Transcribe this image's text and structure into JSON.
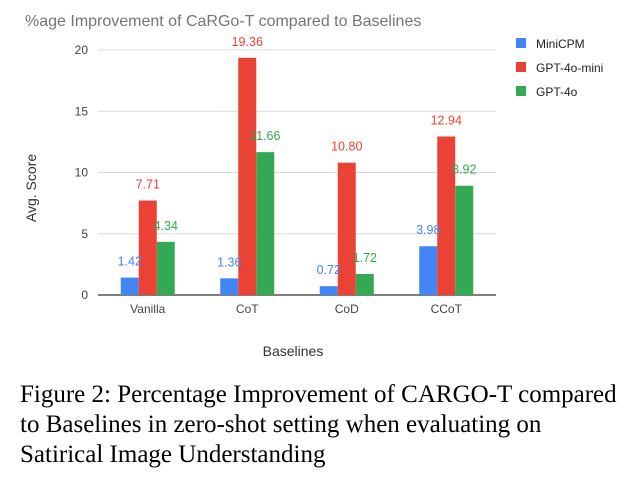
{
  "chart_data": {
    "type": "bar",
    "title": "%age Improvement of CaRGo-T compared to Baselines",
    "xlabel": "Baselines",
    "ylabel": "Avg. Score",
    "categories": [
      "Vanilla",
      "CoT",
      "CoD",
      "CCoT"
    ],
    "yticks": [
      0,
      5,
      10,
      15,
      20
    ],
    "ylim": [
      0,
      20
    ],
    "grid": true,
    "legend_position": "right",
    "series": [
      {
        "name": "MiniCPM",
        "color": "#4285f4",
        "values": [
          1.42,
          1.36,
          0.72,
          3.98
        ],
        "labels": [
          "1.42",
          "1.36",
          "0.72",
          "3.98"
        ]
      },
      {
        "name": "GPT-4o-mini",
        "color": "#ea4335",
        "values": [
          7.71,
          19.36,
          10.8,
          12.94
        ],
        "labels": [
          "7.71",
          "19.36",
          "10.80",
          "12.94"
        ]
      },
      {
        "name": "GPT-4o",
        "color": "#34a853",
        "values": [
          4.34,
          11.66,
          1.72,
          8.92
        ],
        "labels": [
          "4.34",
          "11.66",
          "1.72",
          "8.92"
        ]
      }
    ]
  },
  "caption": {
    "prefix": "Figure 2: Percentage Improvement of ",
    "name_c": "C",
    "name_a": "A",
    "name_r": "RG",
    "name_o": "O",
    "name_t": "-T",
    "suffix": " compared to Baselines in zero-shot setting when evaluating on Satirical Image Understanding"
  }
}
